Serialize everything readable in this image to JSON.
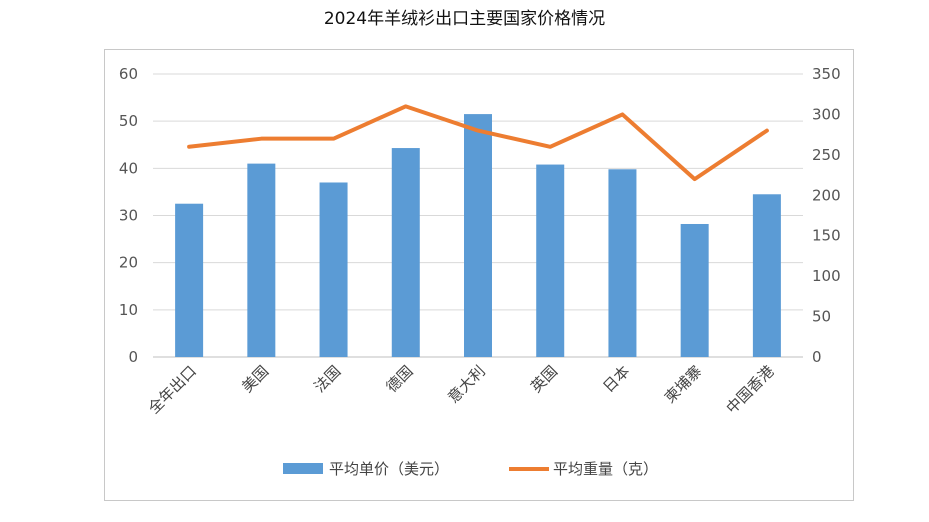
{
  "title": "2024年羊绒衫出口主要国家价格情况",
  "chart_data": {
    "type": "bar",
    "title": "2024年羊绒衫出口主要国家价格情况",
    "categories": [
      "全年出口",
      "美国",
      "法国",
      "德国",
      "意大利",
      "英国",
      "日本",
      "柬埔寨",
      "中国香港"
    ],
    "series": [
      {
        "name": "平均单价（美元）",
        "type": "bar",
        "axis": "left",
        "color": "#5b9bd5",
        "values": [
          32.5,
          41,
          37,
          44.3,
          51.5,
          40.8,
          39.8,
          28.2,
          34.5
        ]
      },
      {
        "name": "平均重量（克）",
        "type": "line",
        "axis": "right",
        "color": "#ed7d31",
        "values": [
          260,
          270,
          270,
          310,
          280,
          260,
          300,
          220,
          280
        ]
      }
    ],
    "y_left": {
      "min": 0,
      "max": 60,
      "ticks": [
        "0",
        "10",
        "20",
        "30",
        "40",
        "50",
        "60"
      ]
    },
    "y_right": {
      "min": 0,
      "max": 350,
      "ticks": [
        "0",
        "50",
        "100",
        "150",
        "200",
        "250",
        "300",
        "350"
      ]
    },
    "grid": true,
    "legend": "bottom"
  }
}
